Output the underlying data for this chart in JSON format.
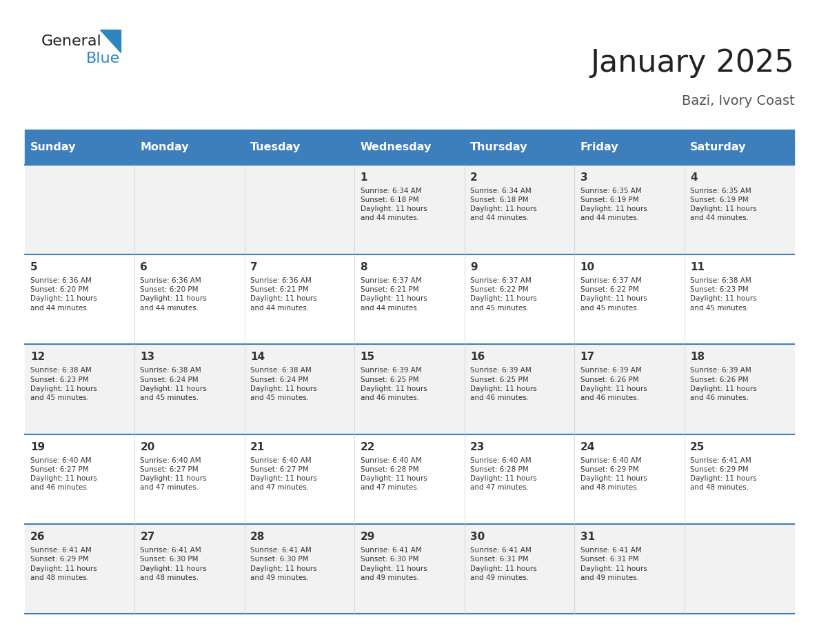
{
  "title": "January 2025",
  "subtitle": "Bazi, Ivory Coast",
  "days_of_week": [
    "Sunday",
    "Monday",
    "Tuesday",
    "Wednesday",
    "Thursday",
    "Friday",
    "Saturday"
  ],
  "header_bg": "#3D7EBD",
  "header_text_color": "#FFFFFF",
  "row_bg_odd": "#F2F2F2",
  "row_bg_even": "#FFFFFF",
  "separator_color": "#3D7EBD",
  "text_color": "#333333",
  "calendar": [
    [
      {
        "day": null,
        "info": null
      },
      {
        "day": null,
        "info": null
      },
      {
        "day": null,
        "info": null
      },
      {
        "day": 1,
        "info": "Sunrise: 6:34 AM\nSunset: 6:18 PM\nDaylight: 11 hours\nand 44 minutes."
      },
      {
        "day": 2,
        "info": "Sunrise: 6:34 AM\nSunset: 6:18 PM\nDaylight: 11 hours\nand 44 minutes."
      },
      {
        "day": 3,
        "info": "Sunrise: 6:35 AM\nSunset: 6:19 PM\nDaylight: 11 hours\nand 44 minutes."
      },
      {
        "day": 4,
        "info": "Sunrise: 6:35 AM\nSunset: 6:19 PM\nDaylight: 11 hours\nand 44 minutes."
      }
    ],
    [
      {
        "day": 5,
        "info": "Sunrise: 6:36 AM\nSunset: 6:20 PM\nDaylight: 11 hours\nand 44 minutes."
      },
      {
        "day": 6,
        "info": "Sunrise: 6:36 AM\nSunset: 6:20 PM\nDaylight: 11 hours\nand 44 minutes."
      },
      {
        "day": 7,
        "info": "Sunrise: 6:36 AM\nSunset: 6:21 PM\nDaylight: 11 hours\nand 44 minutes."
      },
      {
        "day": 8,
        "info": "Sunrise: 6:37 AM\nSunset: 6:21 PM\nDaylight: 11 hours\nand 44 minutes."
      },
      {
        "day": 9,
        "info": "Sunrise: 6:37 AM\nSunset: 6:22 PM\nDaylight: 11 hours\nand 45 minutes."
      },
      {
        "day": 10,
        "info": "Sunrise: 6:37 AM\nSunset: 6:22 PM\nDaylight: 11 hours\nand 45 minutes."
      },
      {
        "day": 11,
        "info": "Sunrise: 6:38 AM\nSunset: 6:23 PM\nDaylight: 11 hours\nand 45 minutes."
      }
    ],
    [
      {
        "day": 12,
        "info": "Sunrise: 6:38 AM\nSunset: 6:23 PM\nDaylight: 11 hours\nand 45 minutes."
      },
      {
        "day": 13,
        "info": "Sunrise: 6:38 AM\nSunset: 6:24 PM\nDaylight: 11 hours\nand 45 minutes."
      },
      {
        "day": 14,
        "info": "Sunrise: 6:38 AM\nSunset: 6:24 PM\nDaylight: 11 hours\nand 45 minutes."
      },
      {
        "day": 15,
        "info": "Sunrise: 6:39 AM\nSunset: 6:25 PM\nDaylight: 11 hours\nand 46 minutes."
      },
      {
        "day": 16,
        "info": "Sunrise: 6:39 AM\nSunset: 6:25 PM\nDaylight: 11 hours\nand 46 minutes."
      },
      {
        "day": 17,
        "info": "Sunrise: 6:39 AM\nSunset: 6:26 PM\nDaylight: 11 hours\nand 46 minutes."
      },
      {
        "day": 18,
        "info": "Sunrise: 6:39 AM\nSunset: 6:26 PM\nDaylight: 11 hours\nand 46 minutes."
      }
    ],
    [
      {
        "day": 19,
        "info": "Sunrise: 6:40 AM\nSunset: 6:27 PM\nDaylight: 11 hours\nand 46 minutes."
      },
      {
        "day": 20,
        "info": "Sunrise: 6:40 AM\nSunset: 6:27 PM\nDaylight: 11 hours\nand 47 minutes."
      },
      {
        "day": 21,
        "info": "Sunrise: 6:40 AM\nSunset: 6:27 PM\nDaylight: 11 hours\nand 47 minutes."
      },
      {
        "day": 22,
        "info": "Sunrise: 6:40 AM\nSunset: 6:28 PM\nDaylight: 11 hours\nand 47 minutes."
      },
      {
        "day": 23,
        "info": "Sunrise: 6:40 AM\nSunset: 6:28 PM\nDaylight: 11 hours\nand 47 minutes."
      },
      {
        "day": 24,
        "info": "Sunrise: 6:40 AM\nSunset: 6:29 PM\nDaylight: 11 hours\nand 48 minutes."
      },
      {
        "day": 25,
        "info": "Sunrise: 6:41 AM\nSunset: 6:29 PM\nDaylight: 11 hours\nand 48 minutes."
      }
    ],
    [
      {
        "day": 26,
        "info": "Sunrise: 6:41 AM\nSunset: 6:29 PM\nDaylight: 11 hours\nand 48 minutes."
      },
      {
        "day": 27,
        "info": "Sunrise: 6:41 AM\nSunset: 6:30 PM\nDaylight: 11 hours\nand 48 minutes."
      },
      {
        "day": 28,
        "info": "Sunrise: 6:41 AM\nSunset: 6:30 PM\nDaylight: 11 hours\nand 49 minutes."
      },
      {
        "day": 29,
        "info": "Sunrise: 6:41 AM\nSunset: 6:30 PM\nDaylight: 11 hours\nand 49 minutes."
      },
      {
        "day": 30,
        "info": "Sunrise: 6:41 AM\nSunset: 6:31 PM\nDaylight: 11 hours\nand 49 minutes."
      },
      {
        "day": 31,
        "info": "Sunrise: 6:41 AM\nSunset: 6:31 PM\nDaylight: 11 hours\nand 49 minutes."
      },
      {
        "day": null,
        "info": null
      }
    ]
  ],
  "logo_text_general": "General",
  "logo_text_blue": "Blue",
  "logo_color_general": "#222222",
  "logo_color_blue": "#2E86C1",
  "logo_triangle_color": "#2E86C1"
}
